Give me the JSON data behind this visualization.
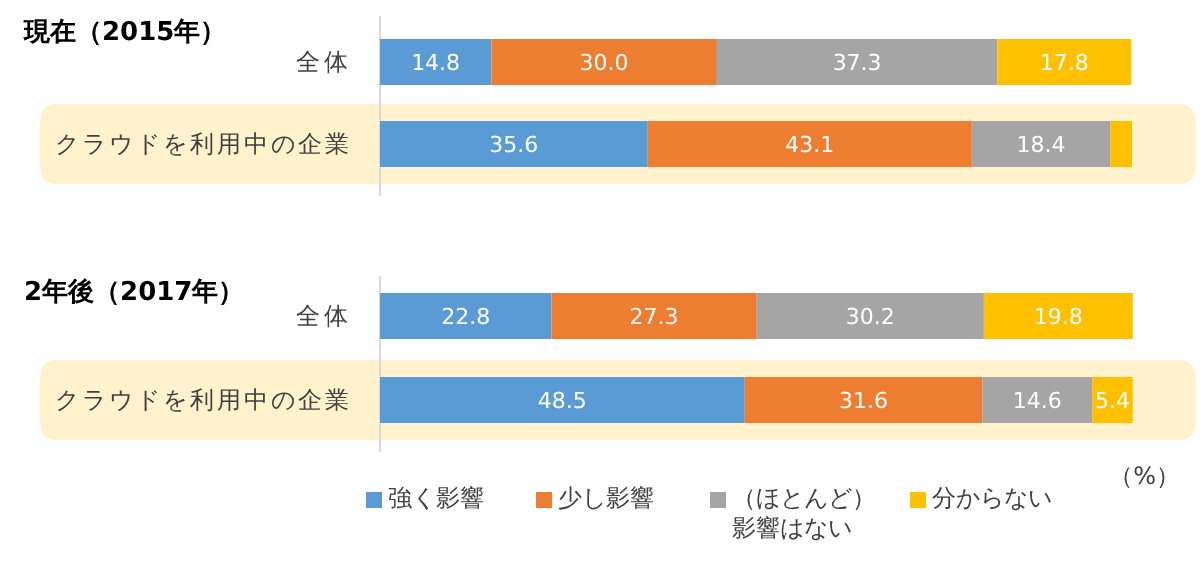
{
  "chart_data": [
    {
      "type": "bar",
      "orientation": "horizontal",
      "stacked": true,
      "title": "現在（2015年）",
      "categories": [
        "全体",
        "クラウドを利用中の企業"
      ],
      "xlim": [
        0,
        100
      ],
      "legend": false,
      "bands": [
        {
          "axis": "y",
          "from": "クラウドを利用中の企業",
          "to": "クラウドを利用中の企業",
          "color": "#fff2cc"
        }
      ],
      "series": [
        {
          "color": "#5b9bd5",
          "values": [
            14.8,
            35.6
          ],
          "value_labels": [
            "14.8",
            "35.6"
          ]
        },
        {
          "color": "#ed7d31",
          "values": [
            30.0,
            43.1
          ],
          "value_labels": [
            "30.0",
            "43.1"
          ]
        },
        {
          "color": "#a5a5a5",
          "values": [
            37.3,
            18.4
          ],
          "value_labels": [
            "37.3",
            "18.4"
          ]
        },
        {
          "color": "#ffc000",
          "values": [
            17.8,
            2.9
          ],
          "value_labels": [
            "17.8",
            null
          ]
        }
      ]
    },
    {
      "type": "bar",
      "orientation": "horizontal",
      "stacked": true,
      "title": "2年後（2017年）",
      "categories": [
        "全体",
        "クラウドを利用中の企業"
      ],
      "xlim": [
        0,
        100
      ],
      "legend": "bottom",
      "bands": [
        {
          "axis": "y",
          "from": "クラウドを利用中の企業",
          "to": "クラウドを利用中の企業",
          "color": "#fff2cc"
        }
      ],
      "annotations": [
        "（%）"
      ],
      "series": [
        {
          "name": "強く影響",
          "color": "#5b9bd5",
          "values": [
            22.8,
            48.5
          ],
          "value_labels": [
            "22.8",
            "48.5"
          ]
        },
        {
          "name": "少し影響",
          "color": "#ed7d31",
          "values": [
            27.3,
            31.6
          ],
          "value_labels": [
            "27.3",
            "31.6"
          ]
        },
        {
          "name": "（ほとんど）影響はない",
          "color": "#a5a5a5",
          "values": [
            30.2,
            14.6
          ],
          "value_labels": [
            "30.2",
            "14.6"
          ]
        },
        {
          "name": "分からない",
          "color": "#ffc000",
          "values": [
            19.8,
            5.4
          ],
          "value_labels": [
            "19.8",
            "5.4"
          ]
        }
      ]
    }
  ]
}
